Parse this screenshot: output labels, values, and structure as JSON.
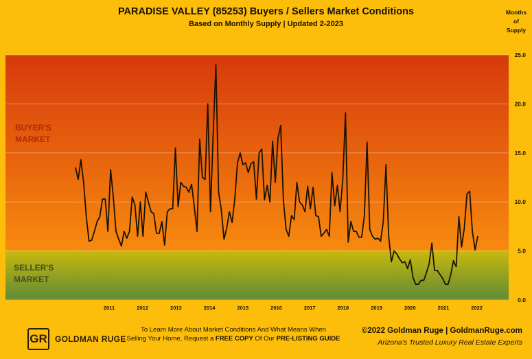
{
  "header": {
    "title": "PARADISE VALLEY (85253) Buyers / Sellers Market Conditions",
    "subtitle": "Based on Monthly Supply | Updated 2-2023",
    "y_unit": "Months\nof\nSupply"
  },
  "zones": {
    "buyers": "BUYER'S\nMARKET",
    "sellers": "SELLER'S\nMARKET"
  },
  "colors": {
    "background": "#fcbe0b",
    "buyer_top": "#d63a0c",
    "buyer_mid": "#f78a0f",
    "seller_top": "#c9b90e",
    "seller_bottom": "#5f8a35",
    "line": "#1a1200",
    "buyer_label": "#b22a08",
    "seller_label": "#3d5020"
  },
  "footer": {
    "logo_mark": "GR",
    "logo_text": "GOLDMAN RUGE",
    "cta_line1": "To Learn More About Market Conditions And What Means When",
    "cta_line2_prefix": "Selling Your Home, Request a ",
    "cta_line2_bold": "FREE COPY",
    "cta_line2_mid": " Of Our ",
    "cta_line2_bold2": "PRE-LISTING GUIDE",
    "copyright": "©2022 Goldman Ruge  |  GoldmanRuge.com",
    "tagline": "Arizona's Trusted Luxury Real Estate Experts"
  },
  "chart_data": {
    "type": "line",
    "title": "PARADISE VALLEY (85253) Buyers / Sellers Market Conditions",
    "ylabel": "Months of Supply",
    "xlabel": "",
    "ylim": [
      0,
      25
    ],
    "yticks": [
      "0.0",
      "5.0",
      "10.0",
      "15.0",
      "20.0",
      "25.0"
    ],
    "yticks_values": [
      0,
      5,
      10,
      15,
      20,
      25
    ],
    "xtick_labels": [
      "2011",
      "2012",
      "2013",
      "2014",
      "2015",
      "2016",
      "2017",
      "2018",
      "2019",
      "2020",
      "2021",
      "2022"
    ],
    "x_start": "2010-01",
    "x_end": "2022-01",
    "buyers_market_threshold": 6,
    "sellers_market_threshold": 5,
    "grid": true,
    "series": [
      {
        "values": [
          13.5,
          12.3,
          14.3,
          12.0,
          8.5,
          6.0,
          6.1,
          7.0,
          8.0,
          8.5,
          10.3,
          10.3,
          7.0,
          13.3,
          10.5,
          7.0,
          6.2,
          5.5,
          7.0,
          6.3,
          7.0,
          10.5,
          9.7,
          6.5,
          10.0,
          6.5,
          11.0,
          10.0,
          9.0,
          8.8,
          6.8,
          6.8,
          8.0,
          5.6,
          9.0,
          9.3,
          9.3,
          15.5,
          9.5,
          12.0,
          11.6,
          11.5,
          11.0,
          11.8,
          9.5,
          7.0,
          16.4,
          12.5,
          12.3,
          20.0,
          9.0,
          17.0,
          24.0,
          11.0,
          9.2,
          6.2,
          7.3,
          9.0,
          7.9,
          10.3,
          14.0,
          15.0,
          13.8,
          14.0,
          13.0,
          13.9,
          14.1,
          10.3,
          15.0,
          15.4,
          10.2,
          11.7,
          10.0,
          16.2,
          12.0,
          16.5,
          17.8,
          10.2,
          7.2,
          6.5,
          8.6,
          8.2,
          12.0,
          10.0,
          9.7,
          9.0,
          11.6,
          9.3,
          11.5,
          8.6,
          8.5,
          6.5,
          6.8,
          7.2,
          6.5,
          13.0,
          9.6,
          11.7,
          9.0,
          12.3,
          19.1,
          5.9,
          8.0,
          7.0,
          7.0,
          6.4,
          6.4,
          8.6,
          16.1,
          7.2,
          6.5,
          6.2,
          6.3,
          6.0,
          8.0,
          13.8,
          6.5,
          3.9,
          5.0,
          4.7,
          4.2,
          3.8,
          3.9,
          3.2,
          4.1,
          2.3,
          1.6,
          1.6,
          2.0,
          2.0,
          2.8,
          3.7,
          5.8,
          3.0,
          3.0,
          2.6,
          2.2,
          1.6,
          1.6,
          2.6,
          4.0,
          3.4,
          8.5,
          5.4,
          7.3,
          10.8,
          11.1,
          7.0,
          5.1,
          6.5
        ]
      }
    ]
  }
}
